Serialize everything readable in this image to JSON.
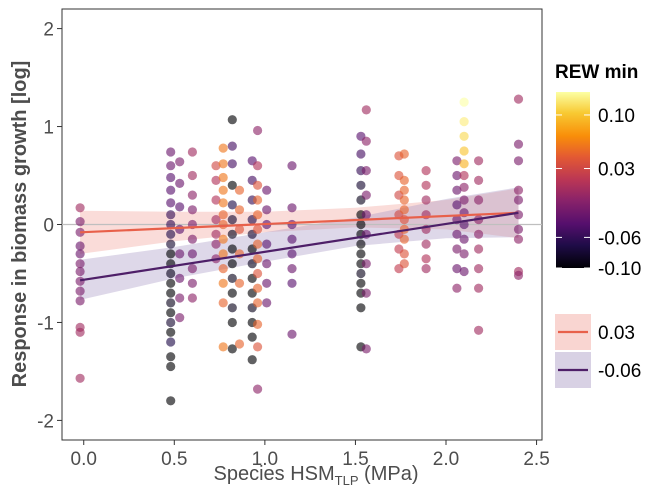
{
  "chart_data": {
    "type": "scatter",
    "xlabel_main": "Species HSM",
    "xlabel_sub": "TLP",
    "xlabel_unit": " (MPa)",
    "ylabel": "Response in biomass growth [log]",
    "xlim": [
      -0.12,
      2.53
    ],
    "ylim": [
      -2.2,
      2.2
    ],
    "xticks": [
      0.0,
      0.5,
      1.0,
      1.5,
      2.0,
      2.5
    ],
    "xtick_labels": [
      "0.0",
      "0.5",
      "1.0",
      "1.5",
      "2.0",
      "2.5"
    ],
    "yticks": [
      -2,
      -1,
      0,
      1,
      2
    ],
    "ytick_labels": [
      "-2",
      "-1",
      "0",
      "1",
      "2"
    ],
    "reference_line_y": 0,
    "color_scale": {
      "title": "REW min",
      "name": "inferno",
      "range": [
        -0.1,
        0.13
      ],
      "ticks": [
        0.1,
        0.03,
        -0.06,
        -0.1
      ],
      "tick_labels": [
        "0.10",
        "0.03",
        "-0.06",
        "-0.10"
      ]
    },
    "points": [
      {
        "x": -0.02,
        "y": 0.17,
        "c": 0.0
      },
      {
        "x": -0.02,
        "y": 0.03,
        "c": -0.02
      },
      {
        "x": -0.02,
        "y": -0.08,
        "c": -0.02
      },
      {
        "x": -0.02,
        "y": -0.22,
        "c": -0.03
      },
      {
        "x": -0.02,
        "y": -0.3,
        "c": -0.03
      },
      {
        "x": -0.02,
        "y": -0.4,
        "c": -0.02
      },
      {
        "x": -0.02,
        "y": -0.48,
        "c": -0.02
      },
      {
        "x": -0.02,
        "y": -0.58,
        "c": -0.02
      },
      {
        "x": -0.02,
        "y": -0.68,
        "c": -0.02
      },
      {
        "x": -0.02,
        "y": -0.78,
        "c": -0.02
      },
      {
        "x": -0.02,
        "y": -1.05,
        "c": 0.0
      },
      {
        "x": -0.02,
        "y": -1.1,
        "c": 0.0
      },
      {
        "x": -0.02,
        "y": -1.57,
        "c": 0.0
      },
      {
        "x": 0.48,
        "y": 0.74,
        "c": -0.03
      },
      {
        "x": 0.48,
        "y": 0.6,
        "c": -0.03
      },
      {
        "x": 0.48,
        "y": 0.48,
        "c": -0.04
      },
      {
        "x": 0.48,
        "y": 0.35,
        "c": -0.04
      },
      {
        "x": 0.48,
        "y": 0.22,
        "c": -0.04
      },
      {
        "x": 0.48,
        "y": 0.1,
        "c": -0.06
      },
      {
        "x": 0.48,
        "y": 0.0,
        "c": -0.06
      },
      {
        "x": 0.48,
        "y": -0.1,
        "c": -0.07
      },
      {
        "x": 0.48,
        "y": -0.2,
        "c": -0.08
      },
      {
        "x": 0.48,
        "y": -0.3,
        "c": -0.1
      },
      {
        "x": 0.48,
        "y": -0.4,
        "c": -0.1
      },
      {
        "x": 0.48,
        "y": -0.5,
        "c": -0.09
      },
      {
        "x": 0.48,
        "y": -0.6,
        "c": -0.1
      },
      {
        "x": 0.48,
        "y": -0.7,
        "c": -0.1
      },
      {
        "x": 0.48,
        "y": -0.8,
        "c": -0.09
      },
      {
        "x": 0.48,
        "y": -0.9,
        "c": -0.1
      },
      {
        "x": 0.48,
        "y": -1.0,
        "c": -0.08
      },
      {
        "x": 0.48,
        "y": -1.1,
        "c": -0.1
      },
      {
        "x": 0.48,
        "y": -1.2,
        "c": -0.07
      },
      {
        "x": 0.48,
        "y": -1.35,
        "c": -0.1
      },
      {
        "x": 0.48,
        "y": -1.45,
        "c": -0.1
      },
      {
        "x": 0.48,
        "y": -1.8,
        "c": -0.1
      },
      {
        "x": 0.53,
        "y": 0.64,
        "c": -0.02
      },
      {
        "x": 0.53,
        "y": 0.42,
        "c": -0.03
      },
      {
        "x": 0.53,
        "y": 0.18,
        "c": -0.04
      },
      {
        "x": 0.53,
        "y": -0.05,
        "c": -0.04
      },
      {
        "x": 0.53,
        "y": -0.3,
        "c": -0.03
      },
      {
        "x": 0.53,
        "y": -0.55,
        "c": -0.03
      },
      {
        "x": 0.53,
        "y": -0.75,
        "c": -0.02
      },
      {
        "x": 0.53,
        "y": -0.95,
        "c": -0.02
      },
      {
        "x": 0.6,
        "y": 0.74,
        "c": 0.0
      },
      {
        "x": 0.6,
        "y": 0.5,
        "c": 0.0
      },
      {
        "x": 0.6,
        "y": 0.3,
        "c": -0.01
      },
      {
        "x": 0.6,
        "y": 0.15,
        "c": -0.02
      },
      {
        "x": 0.6,
        "y": 0.0,
        "c": -0.02
      },
      {
        "x": 0.6,
        "y": -0.15,
        "c": -0.02
      },
      {
        "x": 0.6,
        "y": -0.3,
        "c": -0.03
      },
      {
        "x": 0.6,
        "y": -0.45,
        "c": -0.02
      },
      {
        "x": 0.6,
        "y": -0.6,
        "c": -0.02
      },
      {
        "x": 0.6,
        "y": -0.75,
        "c": -0.01
      },
      {
        "x": 0.73,
        "y": 0.6,
        "c": 0.03
      },
      {
        "x": 0.73,
        "y": 0.45,
        "c": 0.01
      },
      {
        "x": 0.73,
        "y": 0.25,
        "c": 0.01
      },
      {
        "x": 0.73,
        "y": 0.05,
        "c": 0.0
      },
      {
        "x": 0.73,
        "y": -0.1,
        "c": 0.0
      },
      {
        "x": 0.73,
        "y": -0.2,
        "c": -0.01
      },
      {
        "x": 0.73,
        "y": -0.35,
        "c": -0.01
      },
      {
        "x": 0.77,
        "y": 0.78,
        "c": 0.06
      },
      {
        "x": 0.77,
        "y": 0.62,
        "c": 0.06
      },
      {
        "x": 0.77,
        "y": 0.48,
        "c": 0.06
      },
      {
        "x": 0.77,
        "y": 0.35,
        "c": 0.06
      },
      {
        "x": 0.77,
        "y": 0.22,
        "c": 0.06
      },
      {
        "x": 0.77,
        "y": 0.1,
        "c": 0.05
      },
      {
        "x": 0.77,
        "y": 0.0,
        "c": 0.05
      },
      {
        "x": 0.77,
        "y": -0.15,
        "c": 0.06
      },
      {
        "x": 0.77,
        "y": -0.3,
        "c": 0.06
      },
      {
        "x": 0.77,
        "y": -0.45,
        "c": 0.05
      },
      {
        "x": 0.77,
        "y": -0.6,
        "c": 0.06
      },
      {
        "x": 0.77,
        "y": -0.8,
        "c": 0.05
      },
      {
        "x": 0.77,
        "y": -1.25,
        "c": 0.06
      },
      {
        "x": 0.82,
        "y": 1.07,
        "c": -0.1
      },
      {
        "x": 0.82,
        "y": 0.8,
        "c": -0.05
      },
      {
        "x": 0.82,
        "y": 0.62,
        "c": -0.05
      },
      {
        "x": 0.82,
        "y": 0.4,
        "c": -0.1
      },
      {
        "x": 0.82,
        "y": 0.2,
        "c": -0.07
      },
      {
        "x": 0.82,
        "y": 0.05,
        "c": -0.08
      },
      {
        "x": 0.82,
        "y": -0.1,
        "c": -0.09
      },
      {
        "x": 0.82,
        "y": -0.25,
        "c": -0.1
      },
      {
        "x": 0.82,
        "y": -0.4,
        "c": -0.1
      },
      {
        "x": 0.82,
        "y": -0.55,
        "c": -0.09
      },
      {
        "x": 0.82,
        "y": -0.7,
        "c": -0.1
      },
      {
        "x": 0.82,
        "y": -0.85,
        "c": -0.09
      },
      {
        "x": 0.82,
        "y": -1.0,
        "c": -0.1
      },
      {
        "x": 0.82,
        "y": -1.27,
        "c": -0.1
      },
      {
        "x": 0.86,
        "y": 0.35,
        "c": 0.05
      },
      {
        "x": 0.86,
        "y": 0.15,
        "c": 0.05
      },
      {
        "x": 0.86,
        "y": -0.05,
        "c": 0.04
      },
      {
        "x": 0.86,
        "y": -0.3,
        "c": 0.05
      },
      {
        "x": 0.86,
        "y": -0.6,
        "c": 0.05
      },
      {
        "x": 0.86,
        "y": -1.22,
        "c": 0.05
      },
      {
        "x": 0.93,
        "y": 0.65,
        "c": -0.04
      },
      {
        "x": 0.93,
        "y": 0.45,
        "c": -0.05
      },
      {
        "x": 0.93,
        "y": 0.25,
        "c": -0.06
      },
      {
        "x": 0.93,
        "y": 0.05,
        "c": -0.07
      },
      {
        "x": 0.93,
        "y": -0.1,
        "c": -0.08
      },
      {
        "x": 0.93,
        "y": -0.25,
        "c": -0.1
      },
      {
        "x": 0.93,
        "y": -0.4,
        "c": -0.09
      },
      {
        "x": 0.93,
        "y": -0.55,
        "c": -0.1
      },
      {
        "x": 0.93,
        "y": -0.7,
        "c": -0.1
      },
      {
        "x": 0.93,
        "y": -0.85,
        "c": -0.09
      },
      {
        "x": 0.93,
        "y": -1.0,
        "c": -0.1
      },
      {
        "x": 0.93,
        "y": -1.15,
        "c": -0.1
      },
      {
        "x": 0.93,
        "y": -1.38,
        "c": -0.1
      },
      {
        "x": 0.96,
        "y": 0.96,
        "c": -0.01
      },
      {
        "x": 0.96,
        "y": 0.6,
        "c": 0.01
      },
      {
        "x": 0.96,
        "y": 0.4,
        "c": 0.04
      },
      {
        "x": 0.96,
        "y": 0.25,
        "c": 0.05
      },
      {
        "x": 0.96,
        "y": 0.1,
        "c": 0.05
      },
      {
        "x": 0.96,
        "y": -0.05,
        "c": 0.04
      },
      {
        "x": 0.96,
        "y": -0.2,
        "c": 0.05
      },
      {
        "x": 0.96,
        "y": -0.35,
        "c": 0.05
      },
      {
        "x": 0.96,
        "y": -0.5,
        "c": 0.04
      },
      {
        "x": 0.96,
        "y": -0.65,
        "c": 0.05
      },
      {
        "x": 0.96,
        "y": -0.8,
        "c": 0.05
      },
      {
        "x": 0.96,
        "y": -1.02,
        "c": 0.05
      },
      {
        "x": 0.96,
        "y": -1.25,
        "c": 0.04
      },
      {
        "x": 0.96,
        "y": -1.68,
        "c": -0.01
      },
      {
        "x": 1.01,
        "y": 0.35,
        "c": -0.03
      },
      {
        "x": 1.01,
        "y": 0.15,
        "c": -0.03
      },
      {
        "x": 1.01,
        "y": 0.0,
        "c": -0.04
      },
      {
        "x": 1.01,
        "y": -0.2,
        "c": -0.04
      },
      {
        "x": 1.01,
        "y": -0.4,
        "c": -0.03
      },
      {
        "x": 1.01,
        "y": -0.6,
        "c": -0.03
      },
      {
        "x": 1.01,
        "y": -0.8,
        "c": -0.03
      },
      {
        "x": 1.15,
        "y": 0.6,
        "c": -0.03
      },
      {
        "x": 1.15,
        "y": 0.17,
        "c": -0.03
      },
      {
        "x": 1.15,
        "y": 0.0,
        "c": -0.04
      },
      {
        "x": 1.15,
        "y": -0.15,
        "c": -0.04
      },
      {
        "x": 1.15,
        "y": -0.3,
        "c": -0.04
      },
      {
        "x": 1.15,
        "y": -0.45,
        "c": -0.03
      },
      {
        "x": 1.15,
        "y": -0.6,
        "c": -0.04
      },
      {
        "x": 1.15,
        "y": -1.12,
        "c": -0.03
      },
      {
        "x": 1.53,
        "y": 0.9,
        "c": -0.04
      },
      {
        "x": 1.53,
        "y": 0.72,
        "c": -0.05
      },
      {
        "x": 1.53,
        "y": 0.55,
        "c": -0.06
      },
      {
        "x": 1.53,
        "y": 0.4,
        "c": -0.08
      },
      {
        "x": 1.53,
        "y": 0.25,
        "c": -0.09
      },
      {
        "x": 1.53,
        "y": 0.1,
        "c": -0.1
      },
      {
        "x": 1.53,
        "y": 0.0,
        "c": -0.1
      },
      {
        "x": 1.53,
        "y": -0.1,
        "c": -0.1
      },
      {
        "x": 1.53,
        "y": -0.2,
        "c": -0.1
      },
      {
        "x": 1.53,
        "y": -0.3,
        "c": -0.1
      },
      {
        "x": 1.53,
        "y": -0.4,
        "c": -0.1
      },
      {
        "x": 1.53,
        "y": -0.5,
        "c": -0.09
      },
      {
        "x": 1.53,
        "y": -0.6,
        "c": -0.1
      },
      {
        "x": 1.53,
        "y": -0.7,
        "c": -0.1
      },
      {
        "x": 1.53,
        "y": -0.85,
        "c": -0.1
      },
      {
        "x": 1.53,
        "y": -1.25,
        "c": -0.1
      },
      {
        "x": 1.56,
        "y": 1.17,
        "c": 0.0
      },
      {
        "x": 1.56,
        "y": 0.85,
        "c": -0.01
      },
      {
        "x": 1.56,
        "y": 0.55,
        "c": -0.02
      },
      {
        "x": 1.56,
        "y": 0.3,
        "c": -0.02
      },
      {
        "x": 1.56,
        "y": 0.1,
        "c": -0.03
      },
      {
        "x": 1.56,
        "y": -0.1,
        "c": -0.03
      },
      {
        "x": 1.56,
        "y": -0.4,
        "c": -0.02
      },
      {
        "x": 1.56,
        "y": -0.7,
        "c": -0.02
      },
      {
        "x": 1.56,
        "y": -1.27,
        "c": -0.02
      },
      {
        "x": 1.74,
        "y": 0.7,
        "c": 0.04
      },
      {
        "x": 1.74,
        "y": 0.5,
        "c": 0.04
      },
      {
        "x": 1.74,
        "y": 0.3,
        "c": 0.03
      },
      {
        "x": 1.74,
        "y": 0.1,
        "c": 0.03
      },
      {
        "x": 1.74,
        "y": -0.1,
        "c": 0.02
      },
      {
        "x": 1.74,
        "y": -0.25,
        "c": 0.02
      },
      {
        "x": 1.74,
        "y": -0.45,
        "c": 0.02
      },
      {
        "x": 1.77,
        "y": 0.72,
        "c": 0.05
      },
      {
        "x": 1.77,
        "y": 0.45,
        "c": 0.05
      },
      {
        "x": 1.77,
        "y": 0.35,
        "c": 0.05
      },
      {
        "x": 1.77,
        "y": 0.25,
        "c": 0.05
      },
      {
        "x": 1.77,
        "y": 0.15,
        "c": 0.05
      },
      {
        "x": 1.77,
        "y": 0.05,
        "c": 0.04
      },
      {
        "x": 1.77,
        "y": -0.05,
        "c": 0.05
      },
      {
        "x": 1.77,
        "y": -0.15,
        "c": 0.05
      },
      {
        "x": 1.77,
        "y": -0.3,
        "c": 0.04
      },
      {
        "x": 1.77,
        "y": -0.4,
        "c": 0.04
      },
      {
        "x": 1.89,
        "y": 0.55,
        "c": 0.01
      },
      {
        "x": 1.89,
        "y": 0.4,
        "c": 0.01
      },
      {
        "x": 1.89,
        "y": 0.25,
        "c": 0.0
      },
      {
        "x": 1.89,
        "y": 0.1,
        "c": 0.0
      },
      {
        "x": 1.89,
        "y": -0.05,
        "c": 0.0
      },
      {
        "x": 1.89,
        "y": -0.2,
        "c": 0.0
      },
      {
        "x": 1.89,
        "y": -0.35,
        "c": 0.01
      },
      {
        "x": 1.89,
        "y": -0.45,
        "c": 0.0
      },
      {
        "x": 2.06,
        "y": 0.65,
        "c": -0.02
      },
      {
        "x": 2.06,
        "y": 0.5,
        "c": -0.03
      },
      {
        "x": 2.06,
        "y": 0.35,
        "c": -0.03
      },
      {
        "x": 2.06,
        "y": 0.2,
        "c": -0.04
      },
      {
        "x": 2.06,
        "y": 0.05,
        "c": -0.03
      },
      {
        "x": 2.06,
        "y": -0.1,
        "c": -0.03
      },
      {
        "x": 2.06,
        "y": -0.25,
        "c": -0.02
      },
      {
        "x": 2.06,
        "y": -0.45,
        "c": -0.03
      },
      {
        "x": 2.06,
        "y": -0.65,
        "c": -0.01
      },
      {
        "x": 2.1,
        "y": 1.25,
        "c": 0.13
      },
      {
        "x": 2.1,
        "y": 1.05,
        "c": 0.12
      },
      {
        "x": 2.1,
        "y": 0.9,
        "c": 0.11
      },
      {
        "x": 2.1,
        "y": 0.75,
        "c": 0.1
      },
      {
        "x": 2.1,
        "y": 0.62,
        "c": 0.09
      },
      {
        "x": 2.1,
        "y": 0.5,
        "c": 0.01
      },
      {
        "x": 2.1,
        "y": 0.38,
        "c": -0.01
      },
      {
        "x": 2.1,
        "y": 0.25,
        "c": -0.02
      },
      {
        "x": 2.1,
        "y": 0.12,
        "c": -0.03
      },
      {
        "x": 2.1,
        "y": 0.0,
        "c": -0.04
      },
      {
        "x": 2.1,
        "y": -0.15,
        "c": -0.03
      },
      {
        "x": 2.1,
        "y": -0.3,
        "c": -0.02
      },
      {
        "x": 2.1,
        "y": -0.48,
        "c": -0.03
      },
      {
        "x": 2.18,
        "y": 0.65,
        "c": 0.0
      },
      {
        "x": 2.18,
        "y": 0.45,
        "c": 0.0
      },
      {
        "x": 2.18,
        "y": 0.25,
        "c": -0.01
      },
      {
        "x": 2.18,
        "y": 0.05,
        "c": -0.01
      },
      {
        "x": 2.18,
        "y": -0.1,
        "c": -0.01
      },
      {
        "x": 2.18,
        "y": -0.25,
        "c": 0.0
      },
      {
        "x": 2.18,
        "y": -0.45,
        "c": 0.0
      },
      {
        "x": 2.18,
        "y": -0.65,
        "c": 0.0
      },
      {
        "x": 2.18,
        "y": -1.08,
        "c": 0.0
      },
      {
        "x": 2.4,
        "y": 1.28,
        "c": 0.0
      },
      {
        "x": 2.4,
        "y": 0.82,
        "c": -0.02
      },
      {
        "x": 2.4,
        "y": 0.65,
        "c": -0.02
      },
      {
        "x": 2.4,
        "y": 0.35,
        "c": -0.01
      },
      {
        "x": 2.4,
        "y": 0.25,
        "c": -0.02
      },
      {
        "x": 2.4,
        "y": 0.1,
        "c": -0.02
      },
      {
        "x": 2.4,
        "y": -0.05,
        "c": -0.02
      },
      {
        "x": 2.4,
        "y": -0.15,
        "c": -0.01
      },
      {
        "x": 2.4,
        "y": -0.48,
        "c": 0.0
      },
      {
        "x": 2.4,
        "y": -0.52,
        "c": -0.01
      }
    ],
    "series": [
      {
        "name": "0.03",
        "color": "#e8604a",
        "band_color": "#f2a29a",
        "x": [
          -0.02,
          2.4
        ],
        "y": [
          -0.08,
          0.12
        ],
        "band_x": [
          -0.02,
          0.5,
          1.0,
          1.5,
          2.0,
          2.4
        ],
        "band_lower": [
          -0.3,
          -0.17,
          -0.08,
          -0.03,
          -0.05,
          -0.14
        ],
        "band_upper": [
          0.14,
          0.13,
          0.13,
          0.17,
          0.25,
          0.37
        ]
      },
      {
        "name": "-0.06",
        "color": "#4e1f68",
        "band_color": "#a999c4",
        "x": [
          -0.02,
          2.4
        ],
        "y": [
          -0.57,
          0.12
        ],
        "band_x": [
          -0.02,
          0.5,
          1.0,
          1.5,
          2.0,
          2.4
        ],
        "band_lower": [
          -0.77,
          -0.55,
          -0.38,
          -0.22,
          -0.14,
          -0.13
        ],
        "band_upper": [
          -0.36,
          -0.23,
          -0.08,
          0.07,
          0.26,
          0.38
        ]
      }
    ]
  }
}
